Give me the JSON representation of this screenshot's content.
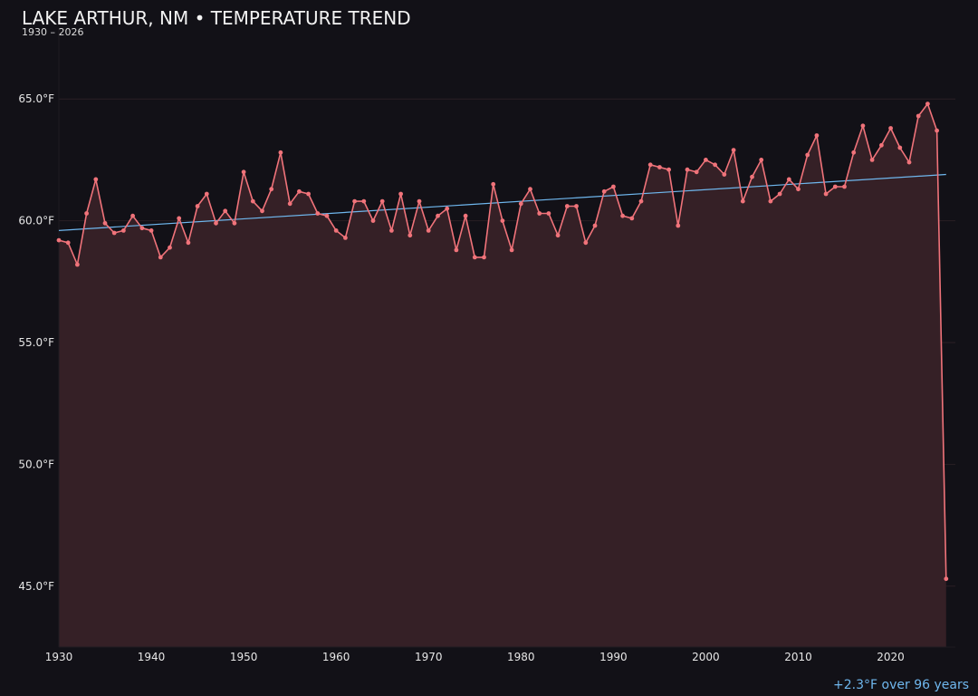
{
  "chart_data": {
    "type": "line",
    "title": "LAKE ARTHUR, NM • TEMPERATURE TREND",
    "subtitle": "1930 – 2026",
    "xlim": [
      1930,
      2027
    ],
    "ylim": [
      42.5,
      67.5
    ],
    "x_ticks": [
      1930,
      1940,
      1950,
      1960,
      1970,
      1980,
      1990,
      2000,
      2010,
      2020
    ],
    "y_ticks": [
      45,
      50,
      55,
      60,
      65
    ],
    "y_tick_labels": [
      "45.0°F",
      "50.0°F",
      "55.0°F",
      "60.0°F",
      "65.0°F"
    ],
    "grid": true,
    "series": [
      {
        "color": "#f0737a",
        "x": [
          1930,
          1931,
          1932,
          1933,
          1934,
          1935,
          1936,
          1937,
          1938,
          1939,
          1940,
          1941,
          1942,
          1943,
          1944,
          1945,
          1946,
          1947,
          1948,
          1949,
          1950,
          1951,
          1952,
          1953,
          1954,
          1955,
          1956,
          1957,
          1958,
          1959,
          1960,
          1961,
          1962,
          1963,
          1964,
          1965,
          1966,
          1967,
          1968,
          1969,
          1970,
          1971,
          1972,
          1973,
          1974,
          1975,
          1976,
          1977,
          1978,
          1979,
          1980,
          1981,
          1982,
          1983,
          1984,
          1985,
          1986,
          1987,
          1988,
          1989,
          1990,
          1991,
          1992,
          1993,
          1994,
          1995,
          1996,
          1997,
          1998,
          1999,
          2000,
          2001,
          2002,
          2003,
          2004,
          2005,
          2006,
          2007,
          2008,
          2009,
          2010,
          2011,
          2012,
          2013,
          2014,
          2015,
          2016,
          2017,
          2018,
          2019,
          2020,
          2021,
          2022,
          2023,
          2024,
          2025,
          2026
        ],
        "values": [
          59.2,
          59.1,
          58.2,
          60.3,
          61.7,
          59.9,
          59.5,
          59.6,
          60.2,
          59.7,
          59.6,
          58.5,
          58.9,
          60.1,
          59.1,
          60.6,
          61.1,
          59.9,
          60.4,
          59.9,
          62.0,
          60.8,
          60.4,
          61.3,
          62.8,
          60.7,
          61.2,
          61.1,
          60.3,
          60.2,
          59.6,
          59.3,
          60.8,
          60.8,
          60.0,
          60.8,
          59.6,
          61.1,
          59.4,
          60.8,
          59.6,
          60.2,
          60.5,
          58.8,
          60.2,
          58.5,
          58.5,
          61.5,
          60.0,
          58.8,
          60.7,
          61.3,
          60.3,
          60.3,
          59.4,
          60.6,
          60.6,
          59.1,
          59.8,
          61.2,
          61.4,
          60.2,
          60.1,
          60.8,
          62.3,
          62.2,
          62.1,
          59.8,
          62.1,
          62.0,
          62.5,
          62.3,
          61.9,
          62.9,
          60.8,
          61.8,
          62.5,
          60.8,
          61.1,
          61.7,
          61.3,
          62.7,
          63.5,
          61.1,
          61.4,
          61.4,
          62.8,
          63.9,
          62.5,
          63.1,
          63.8,
          63.0,
          62.4,
          64.3,
          64.8,
          63.7,
          45.3
        ]
      }
    ],
    "trend": {
      "color": "#6fb7ee",
      "x": [
        1930,
        2026
      ],
      "values": [
        59.6,
        61.9
      ]
    },
    "area_fill": "#352026",
    "annotation": "+2.3°F over 96 years"
  }
}
